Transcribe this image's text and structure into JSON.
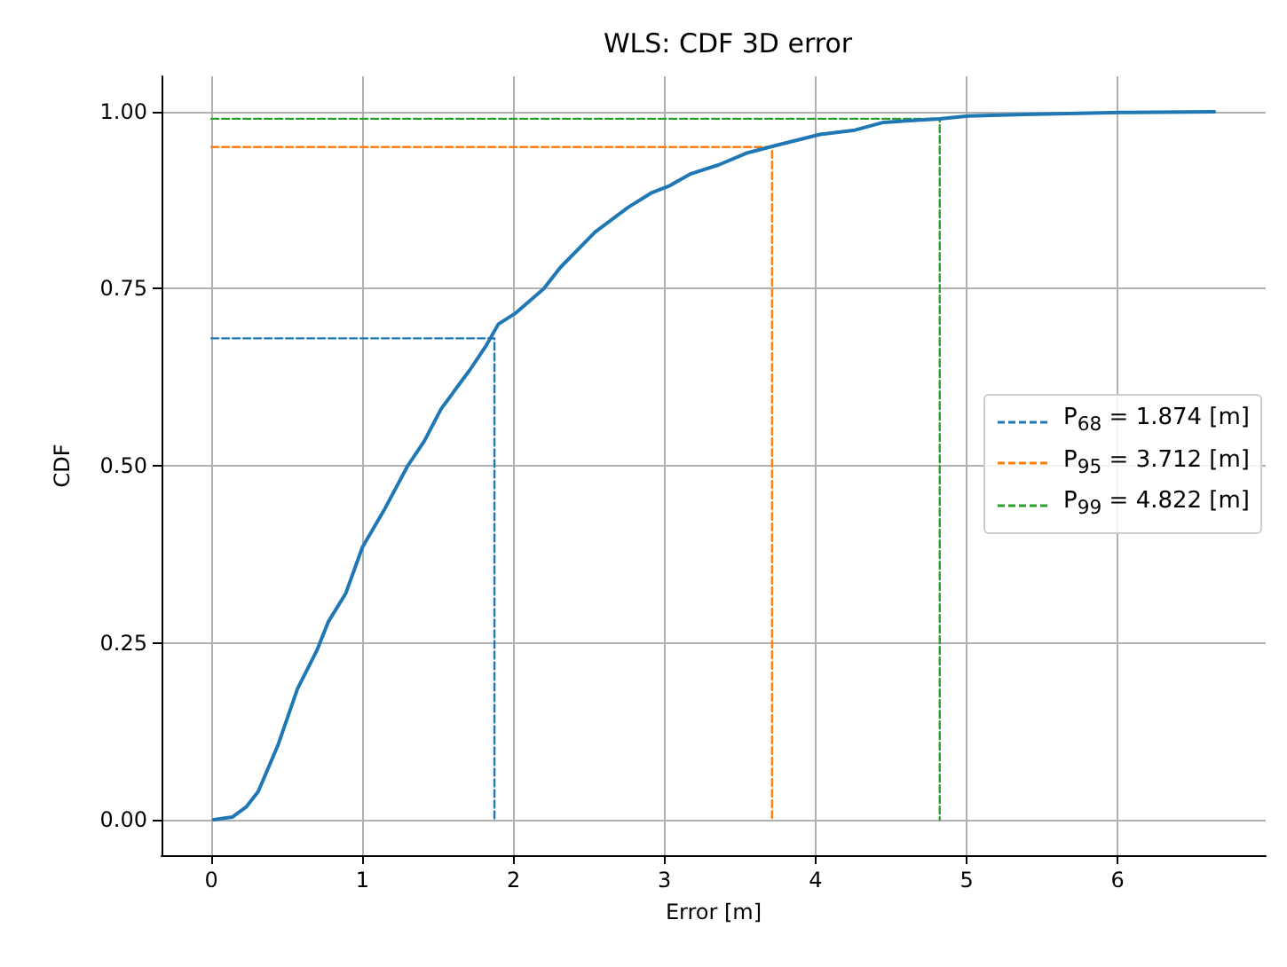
{
  "chart_data": {
    "type": "line",
    "title": "WLS: CDF 3D error",
    "xlabel": "Error [m]",
    "ylabel": "CDF",
    "xlim": [
      -0.33,
      6.98
    ],
    "ylim": [
      -0.05,
      1.05
    ],
    "xticks": [
      0,
      1,
      2,
      3,
      4,
      5,
      6
    ],
    "yticks": [
      {
        "value": 0,
        "label": "0.00"
      },
      {
        "value": 0.25,
        "label": "0.25"
      },
      {
        "value": 0.5,
        "label": "0.50"
      },
      {
        "value": 0.75,
        "label": "0.75"
      },
      {
        "value": 1,
        "label": "1.00"
      }
    ],
    "grid": true,
    "legend": "right",
    "marker": "none",
    "series": [
      {
        "color": "#1f77b4",
        "line_style": "solid",
        "x": [
          0.015,
          0.14,
          0.23,
          0.31,
          0.44,
          0.57,
          0.7,
          0.775,
          0.89,
          1.0,
          1.15,
          1.3,
          1.41,
          1.52,
          1.71,
          1.82,
          1.9,
          2.01,
          2.2,
          2.31,
          2.54,
          2.76,
          2.91,
          3.03,
          3.17,
          3.36,
          3.55,
          3.73,
          4.03,
          4.26,
          4.45,
          4.82,
          5.01,
          5.38,
          6.02,
          6.64
        ],
        "values": [
          0,
          0.004,
          0.018,
          0.04,
          0.105,
          0.185,
          0.24,
          0.28,
          0.32,
          0.385,
          0.44,
          0.5,
          0.535,
          0.58,
          0.635,
          0.67,
          0.7,
          0.715,
          0.75,
          0.78,
          0.83,
          0.865,
          0.885,
          0.895,
          0.912,
          0.925,
          0.942,
          0.952,
          0.968,
          0.974,
          0.985,
          0.99,
          0.994,
          0.996,
          0.999,
          1.0
        ]
      },
      {
        "name": "P$_{68}$ = 1.874 [m]",
        "color": "#1f77b4",
        "line_style": "dashed",
        "x": [
          0,
          1.874,
          1.874
        ],
        "values": [
          0.68,
          0.68,
          0
        ]
      },
      {
        "name": "P$_{95}$ = 3.712 [m]",
        "color": "#ff7f0e",
        "line_style": "dashed",
        "x": [
          0,
          3.712,
          3.712
        ],
        "values": [
          0.95,
          0.95,
          0
        ]
      },
      {
        "name": "P$_{99}$ = 4.822 [m]",
        "color": "#2ca02c",
        "line_style": "dashed",
        "x": [
          0,
          4.822,
          4.822
        ],
        "values": [
          0.99,
          0.99,
          0
        ]
      }
    ]
  }
}
